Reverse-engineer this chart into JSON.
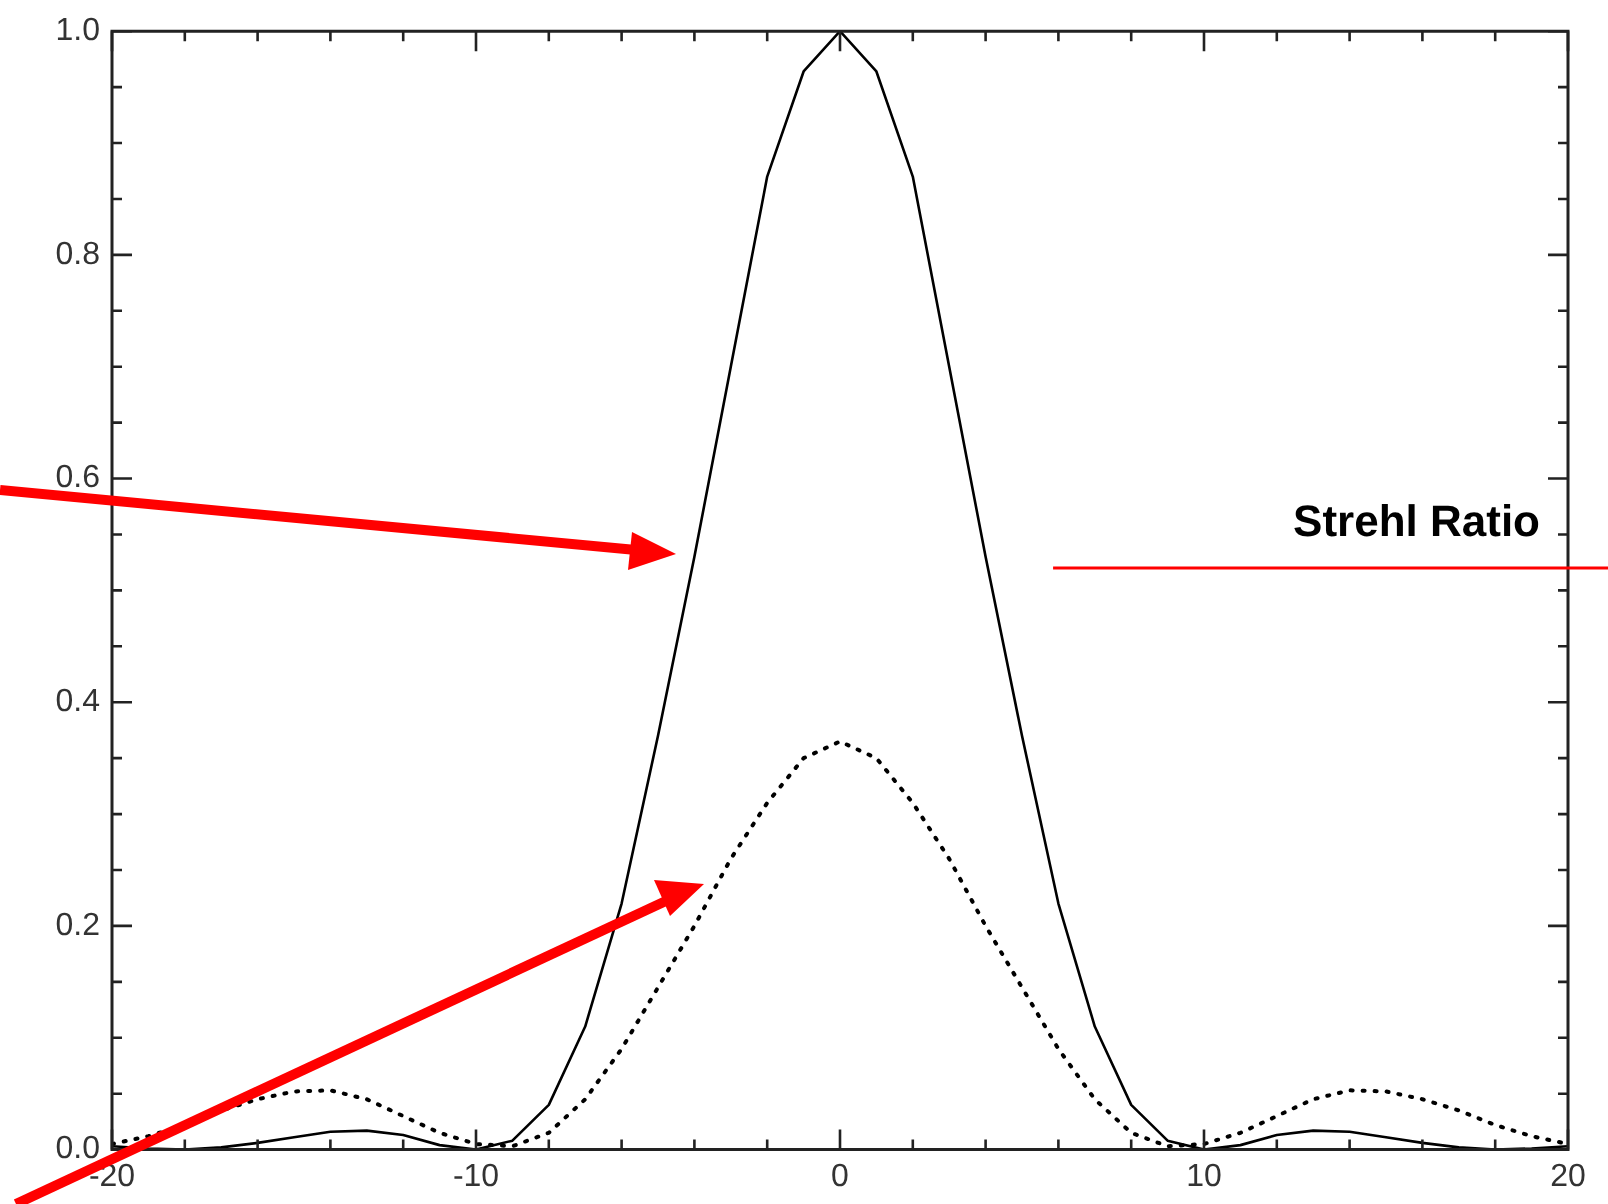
{
  "chart_data": {
    "type": "line",
    "x": [
      -20,
      -19,
      -18,
      -17,
      -16,
      -15,
      -14,
      -13,
      -12,
      -11,
      -10,
      -9,
      -8,
      -7,
      -6,
      -5,
      -4,
      -3,
      -2,
      -1,
      0,
      1,
      2,
      3,
      4,
      5,
      6,
      7,
      8,
      9,
      10,
      11,
      12,
      13,
      14,
      15,
      16,
      17,
      18,
      19,
      20
    ],
    "series": [
      {
        "color": "#000000",
        "line_style": "solid",
        "values": [
          0.003,
          0.001,
          0,
          0.002,
          0.006,
          0.011,
          0.016,
          0.017,
          0.013,
          0.004,
          0,
          0.008,
          0.04,
          0.11,
          0.22,
          0.37,
          0.53,
          0.7,
          0.87,
          0.964,
          1,
          0.964,
          0.87,
          0.7,
          0.53,
          0.37,
          0.22,
          0.11,
          0.04,
          0.008,
          0,
          0.004,
          0.013,
          0.017,
          0.016,
          0.011,
          0.006,
          0.002,
          0,
          0.001,
          0.003
        ]
      },
      {
        "color": "#000000",
        "line_style": "dotted",
        "values": [
          0.005,
          0.012,
          0.022,
          0.035,
          0.045,
          0.052,
          0.053,
          0.045,
          0.03,
          0.015,
          0.005,
          0.003,
          0.015,
          0.045,
          0.09,
          0.145,
          0.2,
          0.26,
          0.31,
          0.35,
          0.365,
          0.35,
          0.31,
          0.26,
          0.2,
          0.145,
          0.09,
          0.045,
          0.015,
          0.003,
          0.005,
          0.015,
          0.03,
          0.045,
          0.053,
          0.052,
          0.045,
          0.035,
          0.022,
          0.012,
          0.005
        ]
      }
    ],
    "xlim": [
      -20,
      20
    ],
    "xticks": [
      -20,
      {
        "value": -18,
        "label": null
      },
      {
        "value": -16,
        "label": null
      },
      {
        "value": -14,
        "label": null
      },
      {
        "value": -12,
        "label": null
      },
      -10,
      {
        "value": -8,
        "label": null
      },
      {
        "value": -6,
        "label": null
      },
      {
        "value": -4,
        "label": null
      },
      {
        "value": -2,
        "label": null
      },
      0,
      {
        "value": 2,
        "label": null
      },
      {
        "value": 4,
        "label": null
      },
      {
        "value": 6,
        "label": null
      },
      {
        "value": 8,
        "label": null
      },
      10,
      {
        "value": 12,
        "label": null
      },
      {
        "value": 14,
        "label": null
      },
      {
        "value": 16,
        "label": null
      },
      {
        "value": 18,
        "label": null
      },
      20
    ],
    "ylim": [
      0,
      1
    ],
    "yticks": [
      {
        "value": 0,
        "label": "0.0"
      },
      {
        "value": 0.05,
        "label": null
      },
      {
        "value": 0.1,
        "label": null
      },
      {
        "value": 0.15,
        "label": null
      },
      {
        "value": 0.2,
        "label": "0.2"
      },
      {
        "value": 0.25,
        "label": null
      },
      {
        "value": 0.3,
        "label": null
      },
      {
        "value": 0.35,
        "label": null
      },
      {
        "value": 0.4,
        "label": "0.4"
      },
      {
        "value": 0.45,
        "label": null
      },
      {
        "value": 0.5,
        "label": null
      },
      {
        "value": 0.55,
        "label": null
      },
      {
        "value": 0.6,
        "label": "0.6"
      },
      {
        "value": 0.65,
        "label": null
      },
      {
        "value": 0.7,
        "label": null
      },
      {
        "value": 0.75,
        "label": null
      },
      {
        "value": 0.8,
        "label": "0.8"
      },
      {
        "value": 0.85,
        "label": null
      },
      {
        "value": 0.9,
        "label": null
      },
      {
        "value": 0.95,
        "label": null
      },
      {
        "value": 1,
        "label": "1.0"
      }
    ],
    "ref_lines": [
      {
        "axis": "y",
        "value": 0.52,
        "label": "Strehl Ratio",
        "color": "#ff0000"
      }
    ],
    "grid": false,
    "legend": false,
    "marker": "none"
  }
}
